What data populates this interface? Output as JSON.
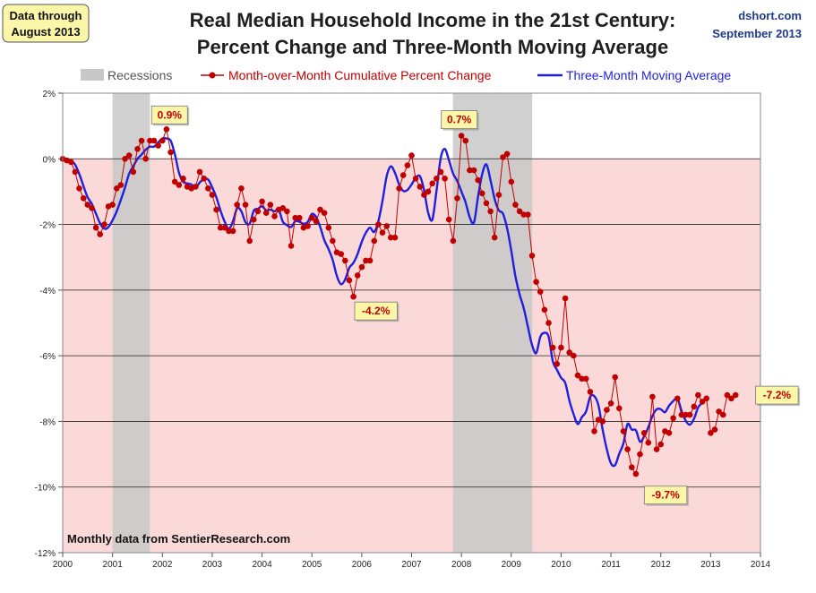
{
  "header": {
    "title_line1": "Real Median Household Income in the 21st Century:",
    "title_line2": "Percent Change and Three-Month Moving Average",
    "data_through_line1": "Data through",
    "data_through_line2": "August 2013",
    "source_site": "dshort.com",
    "source_date": "September 2013",
    "footer_source": "Monthly data from SentierResearch.com"
  },
  "legend": {
    "recessions": "Recessions",
    "mom": "Month-over-Month Cumulative Percent Change",
    "ma": "Three-Month Moving Average"
  },
  "colors": {
    "plot_background": "#fcd9d9",
    "recession": "#c8c8c8",
    "mom_series": "#c00000",
    "ma_series": "#1f1fe0",
    "annotation_fill": "#fbf6a8",
    "annotation_text": "#c00000"
  },
  "chart_data": {
    "type": "line",
    "x_unit": "year",
    "xlim": [
      2000,
      2014
    ],
    "x_ticks": [
      "2000",
      "2001",
      "2002",
      "2003",
      "2004",
      "2005",
      "2006",
      "2007",
      "2008",
      "2009",
      "2010",
      "2011",
      "2012",
      "2013",
      "2014"
    ],
    "ylim": [
      -12,
      2
    ],
    "y_ticks": [
      {
        "value": 2,
        "label": "2%"
      },
      {
        "value": 0,
        "label": "0%"
      },
      {
        "value": -2,
        "label": "-2%"
      },
      {
        "value": -4,
        "label": "-4%"
      },
      {
        "value": -6,
        "label": "-6%"
      },
      {
        "value": -8,
        "label": "-8%"
      },
      {
        "value": -10,
        "label": "-10%"
      },
      {
        "value": -12,
        "label": "-12%"
      }
    ],
    "grid": "horizontal",
    "legend_position": "top",
    "recessions": [
      [
        2001.0,
        2001.75
      ],
      [
        2007.83,
        2009.42
      ]
    ],
    "series": [
      {
        "name": "Month-over-Month Cumulative Percent Change",
        "style": "line-markers",
        "x_start": 2000.0,
        "x_step": 0.0833333,
        "values": [
          0,
          -0.05,
          -0.1,
          -0.4,
          -0.9,
          -1.2,
          -1.4,
          -1.5,
          -2.1,
          -2.3,
          -2.0,
          -1.45,
          -1.4,
          -0.9,
          -0.8,
          0.0,
          0.1,
          -0.4,
          0.3,
          0.55,
          0,
          0.55,
          0.55,
          0.4,
          0.55,
          0.9,
          0.2,
          -0.7,
          -0.8,
          -0.6,
          -0.85,
          -0.9,
          -0.85,
          -0.4,
          -0.6,
          -0.9,
          -1.1,
          -1.55,
          -2.1,
          -2.1,
          -2.2,
          -2.2,
          -1.4,
          -0.9,
          -1.4,
          -2.5,
          -1.85,
          -1.6,
          -1.3,
          -1.65,
          -1.4,
          -1.75,
          -1.55,
          -1.5,
          -1.6,
          -2.65,
          -1.8,
          -1.8,
          -2.1,
          -2.05,
          -1.8,
          -1.9,
          -1.55,
          -1.65,
          -2.1,
          -2.5,
          -2.85,
          -2.9,
          -3.1,
          -3.7,
          -4.2,
          -3.55,
          -3.3,
          -3.1,
          -3.1,
          -2.5,
          -2.0,
          -2.25,
          -2.05,
          -2.4,
          -2.4,
          -0.9,
          -0.5,
          -0.2,
          0.1,
          -0.6,
          -0.85,
          -1.1,
          -1.0,
          -0.75,
          -0.6,
          -0.4,
          -0.6,
          -1.85,
          -2.5,
          -1.2,
          0.7,
          0.55,
          -0.35,
          -0.35,
          -0.65,
          -1.05,
          -1.35,
          -1.6,
          -2.4,
          -1.1,
          0.05,
          0.15,
          -0.7,
          -1.4,
          -1.6,
          -1.7,
          -1.7,
          -2.95,
          -3.75,
          -4.05,
          -4.6,
          -5.0,
          -5.75,
          -6.25,
          -5.75,
          -4.25,
          -5.9,
          -6.0,
          -6.6,
          -6.7,
          -6.7,
          -7.1,
          -8.3,
          -7.95,
          -8.0,
          -7.65,
          -7.45,
          -6.65,
          -7.6,
          -8.3,
          -8.85,
          -9.4,
          -9.6,
          -9.0,
          -8.35,
          -8.65,
          -7.25,
          -8.85,
          -8.7,
          -8.3,
          -8.35,
          -7.9,
          -7.3,
          -7.8,
          -7.8,
          -7.8,
          -7.55,
          -7.2,
          -7.4,
          -7.3,
          -8.35,
          -8.25,
          -7.7,
          -7.8,
          -7.2,
          -7.3,
          -7.2
        ]
      },
      {
        "name": "Three-Month Moving Average",
        "style": "line",
        "x_start": 2000.167,
        "x_step": 0.0833333,
        "values": [
          -0.05,
          -0.18,
          -0.47,
          -0.83,
          -1.17,
          -1.37,
          -1.67,
          -1.97,
          -2.13,
          -2.08,
          -1.87,
          -1.6,
          -1.25,
          -0.87,
          -0.45,
          -0.23,
          0.0,
          0.13,
          0.28,
          0.37,
          0.37,
          0.5,
          0.62,
          0.62,
          0.55,
          0.14,
          -0.43,
          -0.7,
          -0.75,
          -0.78,
          -0.88,
          -0.72,
          -0.62,
          -0.63,
          -0.87,
          -1.18,
          -1.58,
          -1.92,
          -2.13,
          -1.9,
          -1.5,
          -1.6,
          -1.93,
          -1.98,
          -1.58,
          -1.52,
          -1.45,
          -1.57,
          -1.55,
          -1.6,
          -1.55,
          -1.92,
          -2.02,
          -2.08,
          -1.9,
          -1.92,
          -1.98,
          -1.92,
          -1.68,
          -1.77,
          -2.08,
          -2.48,
          -2.75,
          -3.08,
          -3.57,
          -3.82,
          -3.68,
          -3.32,
          -3.17,
          -2.9,
          -2.53,
          -2.25,
          -2.1,
          -2.23,
          -1.9,
          -1.27,
          -0.53,
          -0.23,
          -0.43,
          -0.78,
          -0.98,
          -0.95,
          -0.78,
          -0.58,
          -0.53,
          -0.95,
          -1.65,
          -1.85,
          -0.98,
          0.02,
          0.3,
          -0.05,
          -0.45,
          -0.68,
          -1.0,
          -1.33,
          -1.78,
          -1.95,
          -1.15,
          -0.47,
          -0.17,
          -0.65,
          -1.23,
          -1.57,
          -1.67,
          -2.12,
          -2.8,
          -3.58,
          -4.13,
          -4.55,
          -5.12,
          -5.67,
          -5.92,
          -5.42,
          -5.3,
          -5.42,
          -6.17,
          -6.43,
          -6.67,
          -6.83,
          -7.37,
          -7.78,
          -8.08,
          -7.87,
          -7.7,
          -7.25,
          -7.23,
          -7.52,
          -8.25,
          -8.85,
          -9.28,
          -9.33,
          -8.98,
          -8.67,
          -8.08,
          -8.25,
          -8.27,
          -8.62,
          -8.45,
          -8.18,
          -7.83,
          -7.63,
          -7.63,
          -7.72,
          -7.52,
          -7.38,
          -7.3,
          -7.68,
          -7.98,
          -8.1,
          -7.92,
          -7.57,
          -7.43,
          -7.23
        ]
      }
    ],
    "annotations": [
      {
        "label": "0.9%",
        "x": 2002.0,
        "y": 0.9
      },
      {
        "label": "-4.2%",
        "x": 2005.75,
        "y": -4.2
      },
      {
        "label": "0.7%",
        "x": 2007.92,
        "y": 0.7
      },
      {
        "label": "-9.7%",
        "x": 2011.58,
        "y": -9.7
      },
      {
        "label": "-7.2%",
        "x": 2013.58,
        "y": -7.2
      }
    ]
  }
}
